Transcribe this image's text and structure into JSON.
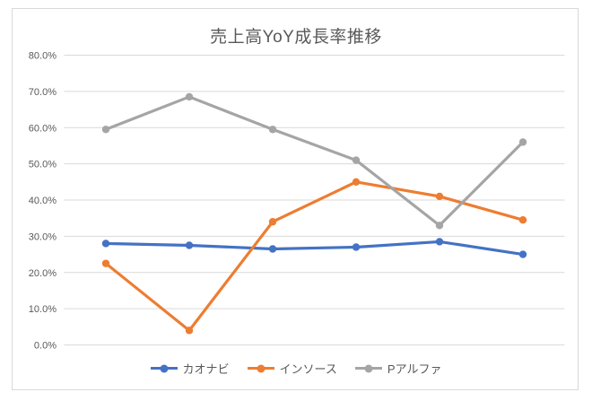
{
  "chart_data": {
    "type": "line",
    "title": "売上高YoY成長率推移",
    "unit": "%",
    "x_axis_labels": [],
    "ylim": [
      0,
      80
    ],
    "yticks": [
      {
        "value": 0,
        "label": "0.0%"
      },
      {
        "value": 10,
        "label": "10.0%"
      },
      {
        "value": 20,
        "label": "20.0%"
      },
      {
        "value": 30,
        "label": "30.0%"
      },
      {
        "value": 40,
        "label": "40.0%"
      },
      {
        "value": 50,
        "label": "50.0%"
      },
      {
        "value": 60,
        "label": "60.0%"
      },
      {
        "value": 70,
        "label": "70.0%"
      },
      {
        "value": 80,
        "label": "80.0%"
      }
    ],
    "series": [
      {
        "name": "カオナビ",
        "slug": "kaonavi",
        "color": "#4472C4",
        "values": [
          28.0,
          27.5,
          26.5,
          27.0,
          28.5,
          25.0
        ]
      },
      {
        "name": "インソース",
        "slug": "insource",
        "color": "#ED7D31",
        "values": [
          22.5,
          4.0,
          34.0,
          45.0,
          41.0,
          34.5
        ]
      },
      {
        "name": "Pアルファ",
        "slug": "p-alpha",
        "color": "#A5A5A5",
        "values": [
          59.5,
          68.5,
          59.5,
          51.0,
          33.0,
          56.0
        ]
      }
    ],
    "grid": "horizontal",
    "legend_position": "bottom",
    "style": {
      "gridline_color": "#D9D9D9",
      "tick_text_color": "#595959",
      "title_color": "#595959",
      "legend_text_color": "#595959",
      "frame_border_color": "#D9D9D9",
      "background": "#FFFFFF"
    }
  }
}
